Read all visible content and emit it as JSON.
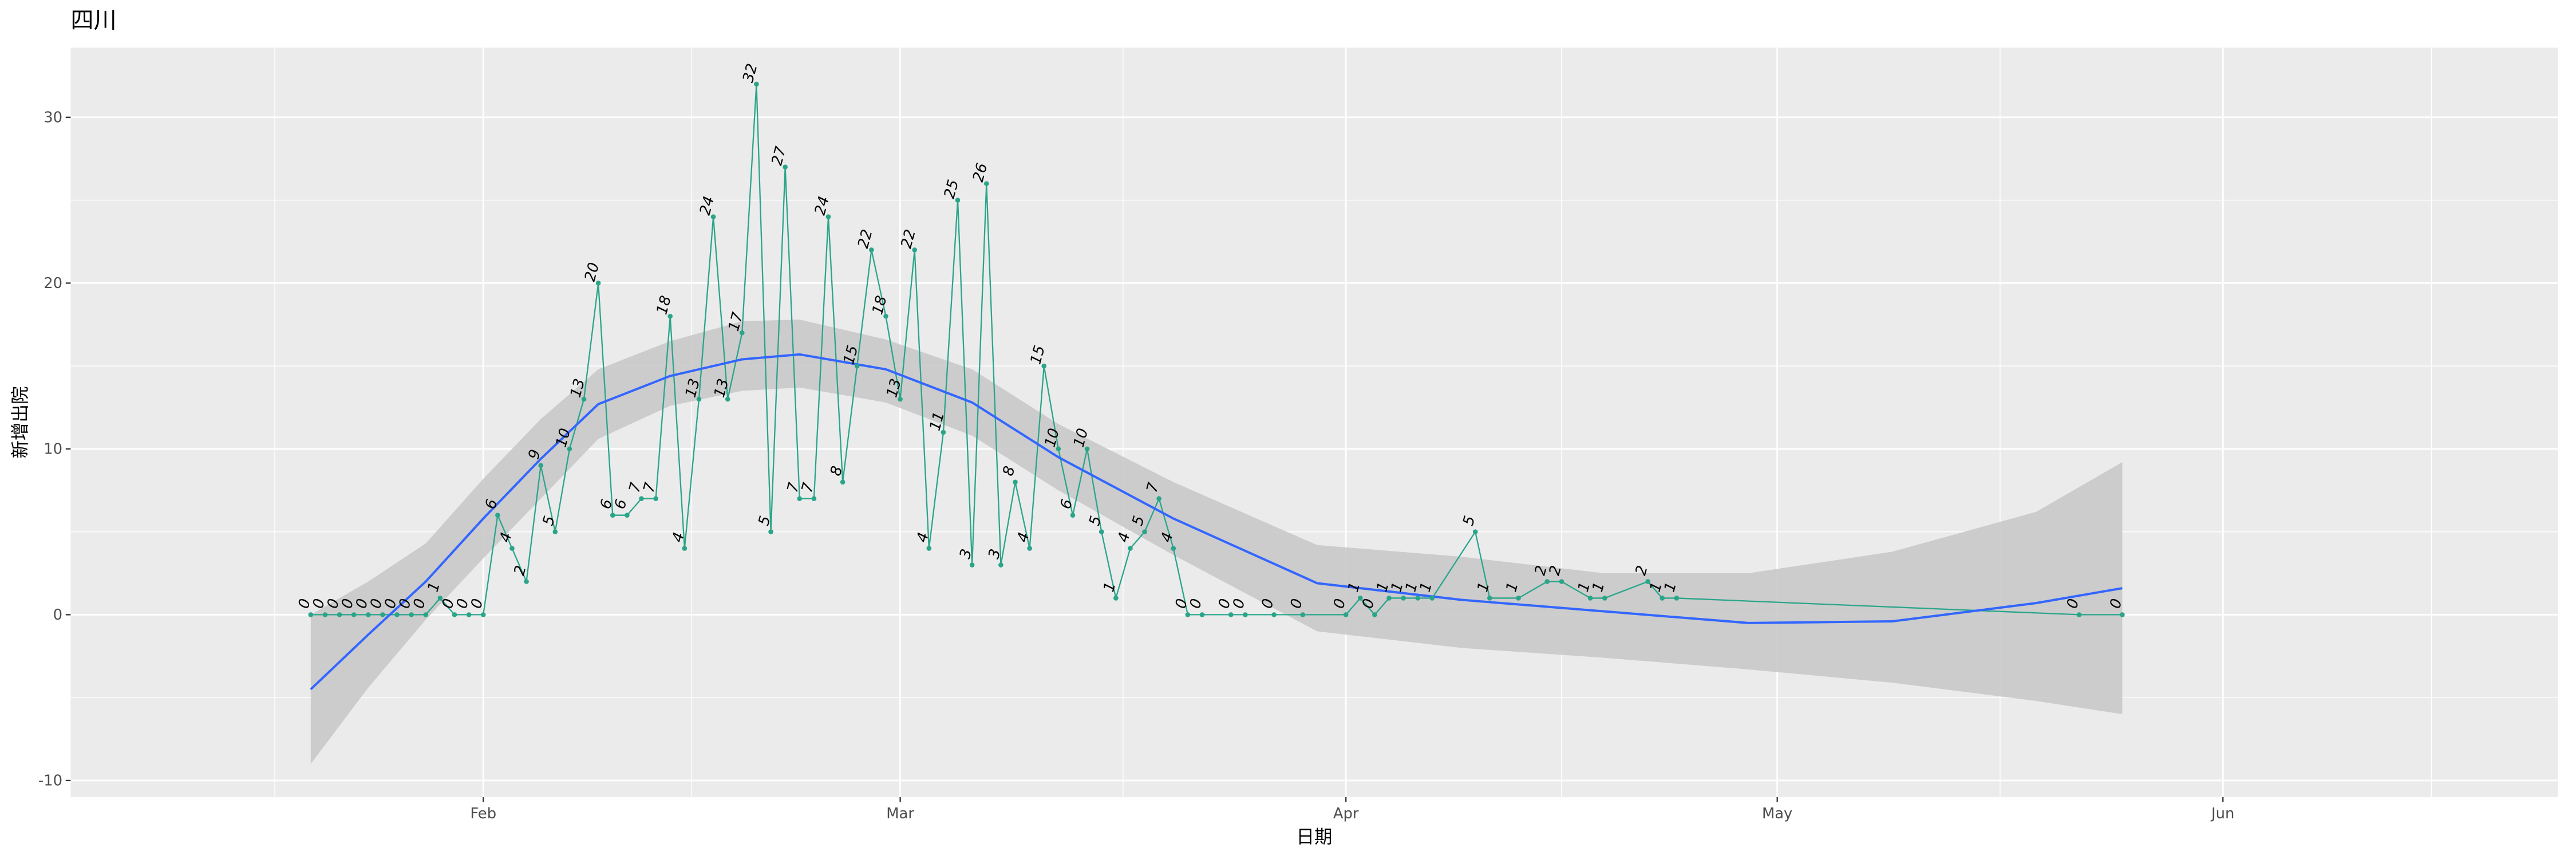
{
  "chart_data": {
    "type": "line",
    "title": "四川",
    "x_label": "日期",
    "y_label": "新增出院",
    "x": [
      20,
      21,
      22,
      23,
      24,
      25,
      26,
      27,
      28,
      29,
      30,
      31,
      32,
      33,
      34,
      35,
      36,
      37,
      38,
      39,
      40,
      41,
      42,
      43,
      44,
      45,
      46,
      47,
      48,
      49,
      50,
      51,
      52,
      53,
      54,
      55,
      56,
      57,
      58,
      59,
      60,
      61,
      62,
      63,
      64,
      65,
      66,
      67,
      68,
      69,
      70,
      71,
      72,
      73,
      74,
      75,
      76,
      77,
      78,
      79,
      80,
      81,
      82,
      84,
      85,
      87,
      89,
      92,
      93,
      94,
      95,
      96,
      97,
      98,
      101,
      102,
      104,
      106,
      107,
      109,
      110,
      113,
      114,
      115,
      143,
      146
    ],
    "values": [
      0,
      0,
      0,
      0,
      0,
      0,
      0,
      0,
      0,
      1,
      0,
      0,
      0,
      6,
      4,
      2,
      9,
      5,
      10,
      13,
      20,
      6,
      6,
      7,
      7,
      18,
      4,
      13,
      24,
      13,
      17,
      32,
      5,
      27,
      7,
      7,
      24,
      8,
      15,
      22,
      18,
      13,
      22,
      4,
      11,
      25,
      3,
      26,
      3,
      8,
      4,
      15,
      10,
      6,
      10,
      5,
      1,
      4,
      5,
      7,
      4,
      0,
      0,
      0,
      0,
      0,
      0,
      0,
      1,
      0,
      1,
      1,
      1,
      1,
      5,
      1,
      1,
      2,
      2,
      1,
      1,
      2,
      1,
      1,
      0,
      0
    ],
    "color": "#2aa58a",
    "smooth": {
      "color": "#3366ff",
      "band_color": "#c9c9c9",
      "x": [
        20,
        24,
        28,
        32,
        36,
        40,
        45,
        50,
        54,
        60,
        66,
        72,
        80,
        90,
        100,
        110,
        120,
        130,
        140,
        146
      ],
      "values": [
        -4.5,
        -1.2,
        2.0,
        5.8,
        9.4,
        12.7,
        14.4,
        15.4,
        15.7,
        14.8,
        12.8,
        9.5,
        5.8,
        1.9,
        0.9,
        0.2,
        -0.5,
        -0.4,
        0.7,
        1.6
      ],
      "lower": [
        -9,
        -4.4,
        -0.3,
        3.4,
        7.0,
        10.6,
        12.6,
        13.5,
        13.7,
        12.8,
        10.8,
        7.5,
        3.6,
        -1.0,
        -2.0,
        -2.6,
        -3.3,
        -4.1,
        -5.2,
        -6.0
      ],
      "upper": [
        0,
        2.0,
        4.3,
        8.2,
        11.8,
        14.8,
        16.5,
        17.7,
        17.8,
        16.6,
        14.8,
        11.5,
        8.0,
        4.2,
        3.5,
        2.5,
        2.5,
        3.8,
        6.2,
        9.2
      ]
    },
    "xlim": [
      3.3,
      176.3
    ],
    "xticks": [
      {
        "value": 32,
        "label": "Feb"
      },
      {
        "value": 61,
        "label": "Mar"
      },
      {
        "value": 92,
        "label": "Apr"
      },
      {
        "value": 122,
        "label": "May"
      },
      {
        "value": 153,
        "label": "Jun"
      }
    ],
    "ylim": [
      -11,
      34.2
    ],
    "yticks": [
      -10,
      0,
      10,
      20,
      30
    ],
    "grid": true
  }
}
